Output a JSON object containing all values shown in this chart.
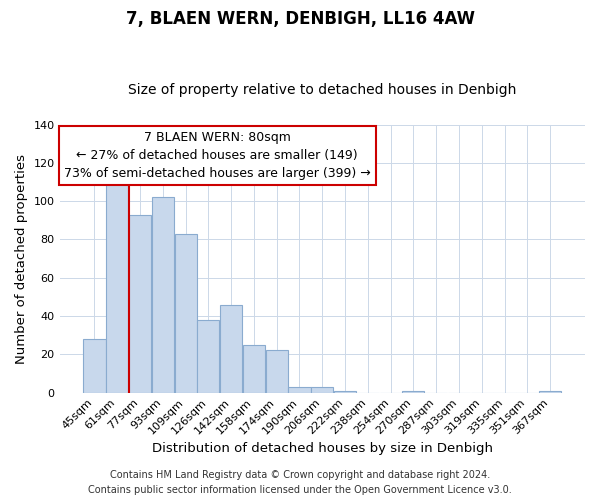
{
  "title": "7, BLAEN WERN, DENBIGH, LL16 4AW",
  "subtitle": "Size of property relative to detached houses in Denbigh",
  "xlabel": "Distribution of detached houses by size in Denbigh",
  "ylabel": "Number of detached properties",
  "bar_labels": [
    "45sqm",
    "61sqm",
    "77sqm",
    "93sqm",
    "109sqm",
    "126sqm",
    "142sqm",
    "158sqm",
    "174sqm",
    "190sqm",
    "206sqm",
    "222sqm",
    "238sqm",
    "254sqm",
    "270sqm",
    "287sqm",
    "303sqm",
    "319sqm",
    "335sqm",
    "351sqm",
    "367sqm"
  ],
  "bar_values": [
    28,
    111,
    93,
    102,
    83,
    38,
    46,
    25,
    22,
    3,
    3,
    1,
    0,
    0,
    1,
    0,
    0,
    0,
    0,
    0,
    1
  ],
  "bar_color": "#c8d8ec",
  "bar_edge_color": "#8aabcf",
  "vline_color": "#cc0000",
  "vline_x_index": 1.5,
  "ylim": [
    0,
    140
  ],
  "yticks": [
    0,
    20,
    40,
    60,
    80,
    100,
    120,
    140
  ],
  "annotation_title": "7 BLAEN WERN: 80sqm",
  "annotation_line1": "← 27% of detached houses are smaller (149)",
  "annotation_line2": "73% of semi-detached houses are larger (399) →",
  "footer1": "Contains HM Land Registry data © Crown copyright and database right 2024.",
  "footer2": "Contains public sector information licensed under the Open Government Licence v3.0.",
  "title_fontsize": 12,
  "subtitle_fontsize": 10,
  "axis_label_fontsize": 9.5,
  "tick_fontsize": 8,
  "annotation_fontsize": 9,
  "footer_fontsize": 7,
  "background_color": "#ffffff",
  "grid_color": "#ccd8e8"
}
